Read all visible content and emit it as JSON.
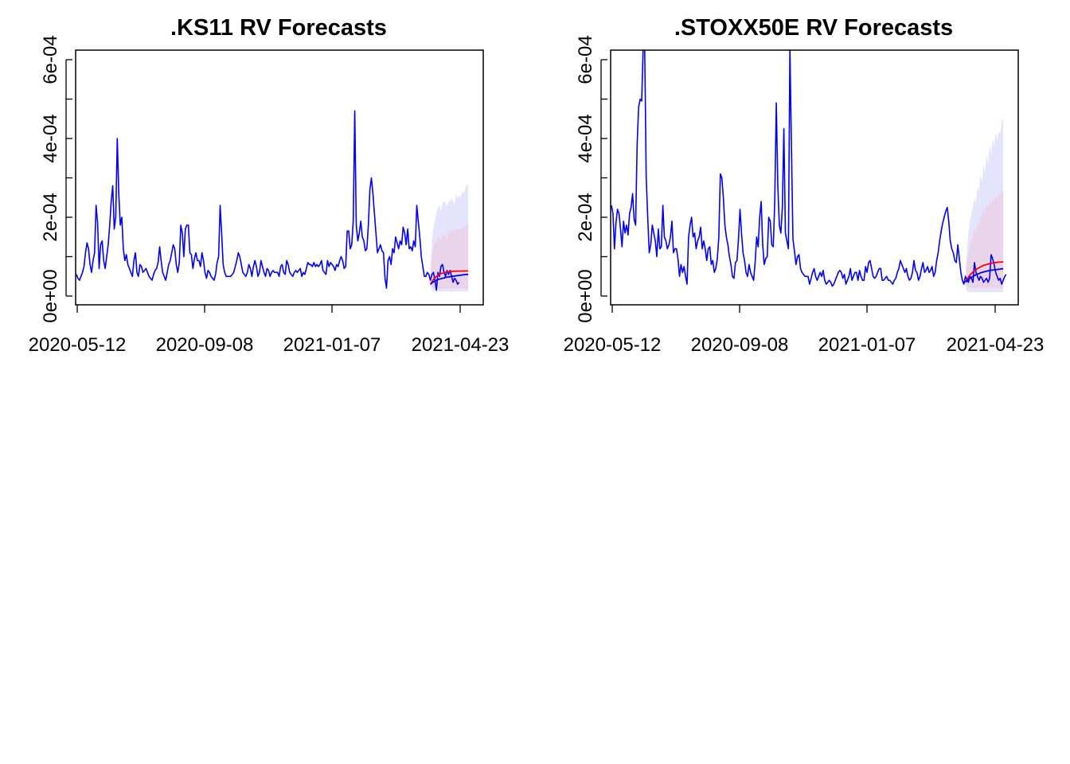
{
  "colors": {
    "history_line": "#0000ff",
    "forecast_red": "#ff0000",
    "forecast_blue": "#0000ff",
    "band_outer": "#e4e4fc",
    "band_inner": "#ead4ea",
    "axis": "#000000"
  },
  "chart_data": [
    {
      "type": "line",
      "title": ".KS11 RV Forecasts",
      "xlabel": "",
      "ylabel": "",
      "x_tick_labels": [
        "2020-05-12",
        "2020-09-08",
        "2021-01-07",
        "2021-04-23"
      ],
      "y_tick_labels": [
        "0e+00",
        "2e-04",
        "4e-04",
        "6e-04"
      ],
      "y_ticks": [
        0,
        0.0002,
        0.0004,
        0.0006
      ],
      "ylim": [
        0,
        0.00063
      ],
      "xlim": [
        0,
        260
      ],
      "grid": false,
      "legend": "none",
      "history": [
        5.5e-05,
        4.5e-05,
        4e-05,
        5e-05,
        6e-05,
        7.5e-05,
        0.00011,
        0.000135,
        0.00012,
        8e-05,
        6e-05,
        9e-05,
        0.00011,
        0.00023,
        0.000185,
        7e-05,
        0.00013,
        0.00014,
        9e-05,
        7e-05,
        0.0001,
        0.00013,
        0.00018,
        0.00024,
        0.00028,
        0.00017,
        0.0002,
        0.0004,
        0.00026,
        0.00018,
        0.0002,
        0.00012,
        9e-05,
        0.000105,
        8e-05,
        7e-05,
        6e-05,
        5e-05,
        9e-05,
        0.00011,
        6e-05,
        5e-05,
        8e-05,
        7.5e-05,
        6e-05,
        6.5e-05,
        7e-05,
        6e-05,
        5e-05,
        4.5e-05,
        4e-05,
        5.5e-05,
        6.5e-05,
        7e-05,
        8.5e-05,
        0.000125,
        9e-05,
        6e-05,
        5e-05,
        4e-05,
        6e-05,
        8e-05,
        9e-05,
        0.00011,
        0.00013,
        0.00012,
        8e-05,
        6e-05,
        8.5e-05,
        0.00018,
        0.00016,
        0.0001,
        0.00017,
        0.00018,
        0.00018,
        0.00011,
        0.000105,
        7e-05,
        9.5e-05,
        0.00011,
        9e-05,
        9e-05,
        7.5e-05,
        0.00011,
        9e-05,
        6e-05,
        4.5e-05,
        6.5e-05,
        6e-05,
        5e-05,
        4.5e-05,
        4e-05,
        5.5e-05,
        8.5e-05,
        0.0001,
        0.00023,
        0.00016,
        8e-05,
        6e-05,
        5e-05,
        5e-05,
        5e-05,
        5e-05,
        5.5e-05,
        6e-05,
        7.5e-05,
        9e-05,
        0.00011,
        0.0001,
        8e-05,
        6e-05,
        5.5e-05,
        5e-05,
        6e-05,
        8e-05,
        7e-05,
        5e-05,
        7.5e-05,
        9e-05,
        7.5e-05,
        5e-05,
        6e-05,
        9e-05,
        7.5e-05,
        6e-05,
        5e-05,
        7e-05,
        6.5e-05,
        5e-05,
        6e-05,
        6.5e-05,
        6e-05,
        6e-05,
        6e-05,
        5e-05,
        7.5e-05,
        8e-05,
        6e-05,
        5.5e-05,
        9e-05,
        8e-05,
        6e-05,
        5.5e-05,
        5e-05,
        6e-05,
        6.5e-05,
        6e-05,
        6.5e-05,
        7e-05,
        5e-05,
        6e-05,
        5.5e-05,
        7e-05,
        8.5e-05,
        8e-05,
        8e-05,
        7.5e-05,
        8.5e-05,
        7.5e-05,
        8e-05,
        7.5e-05,
        8e-05,
        9e-05,
        6.5e-05,
        6e-05,
        5.5e-05,
        9e-05,
        7.5e-05,
        8.5e-05,
        8e-05,
        7.5e-05,
        6.5e-05,
        8e-05,
        7.5e-05,
        9e-05,
        0.0001,
        9e-05,
        7e-05,
        7.5e-05,
        0.000165,
        0.000165,
        0.00012,
        0.00013,
        0.00019,
        0.00047,
        0.00018,
        0.00014,
        0.00016,
        0.00019,
        0.00015,
        0.00014,
        0.000115,
        0.00012,
        0.00018,
        0.00027,
        0.0003,
        0.00026,
        0.00021,
        0.00016,
        0.00011,
        0.00012,
        0.00013,
        0.000115,
        0.00011,
        4.5e-05,
        2e-05,
        9e-05,
        0.0001,
        8e-05,
        0.00012,
        0.00011,
        0.00015,
        0.000135,
        0.00012,
        0.00014,
        0.00013,
        0.000175,
        0.00016,
        0.00013,
        0.00017,
        0.00012,
        0.000125,
        0.000115,
        0.00014,
        0.000125,
        0.00023,
        0.00019,
        0.00015,
        0.0001,
        7.5e-05,
        5e-05,
        5e-05,
        6e-05,
        5.5e-05,
        4e-05,
        5.5e-05,
        6e-05,
        4e-05,
        1.5e-05,
        6e-05,
        5e-05,
        7.5e-05,
        8e-05,
        6e-05,
        5e-05,
        6.5e-05,
        5.5e-05,
        6.5e-05,
        5e-05,
        3.5e-05,
        4.5e-05,
        4e-05,
        3e-05,
        3.5e-05
      ],
      "forecast_start_index": 234,
      "forecast_red": [
        3e-05,
        3.6e-05,
        4.2e-05,
        4.6e-05,
        5e-05,
        5.3e-05,
        5.5e-05,
        5.7e-05,
        5.8e-05,
        5.9e-05,
        6e-05,
        6.1e-05,
        6.15e-05,
        6.2e-05,
        6.25e-05,
        6.3e-05,
        6.3e-05,
        6.32e-05,
        6.33e-05,
        6.34e-05,
        6.35e-05,
        6.35e-05,
        6.36e-05,
        6.36e-05,
        6.37e-05,
        6.37e-05
      ],
      "forecast_blue": [
        3e-05,
        3.3e-05,
        3.6e-05,
        3.8e-05,
        4e-05,
        4.2e-05,
        4.3e-05,
        4.4e-05,
        4.5e-05,
        4.6e-05,
        4.7e-05,
        4.8e-05,
        4.85e-05,
        4.9e-05,
        5e-05,
        5.05e-05,
        5.1e-05,
        5.15e-05,
        5.2e-05,
        5.25e-05,
        5.3e-05,
        5.35e-05,
        5.4e-05,
        5.45e-05,
        5.5e-05,
        5.52e-05
      ],
      "band_outer_upper": [
        6e-05,
        0.00014,
        0.00017,
        0.00019,
        0.00021,
        0.000225,
        0.00023,
        0.000215,
        0.000235,
        0.00024,
        0.000238,
        0.000225,
        0.000245,
        0.000238,
        0.00025,
        0.00024,
        0.000232,
        0.00026,
        0.000248,
        0.000255,
        0.00025,
        0.000265,
        0.000262,
        0.000272,
        0.000285,
        0.00028
      ],
      "band_outer_lower": [
        2.6e-05,
        1.4e-05,
        1.3e-05,
        1.2e-05,
        1.2e-05,
        1.2e-05,
        1.2e-05,
        1.2e-05,
        1.2e-05,
        1.2e-05,
        1.2e-05,
        1.2e-05,
        1.2e-05,
        1.2e-05,
        1.2e-05,
        1.2e-05,
        1.2e-05,
        1.2e-05,
        1.2e-05,
        1.2e-05,
        1.2e-05,
        1.2e-05,
        1.2e-05,
        1.2e-05,
        1.2e-05,
        1.2e-05
      ],
      "band_inner_upper": [
        4e-05,
        0.0001,
        0.00012,
        0.000135,
        0.00014,
        0.00015,
        0.000148,
        0.00014,
        0.000155,
        0.000158,
        0.000152,
        0.000145,
        0.000165,
        0.00016,
        0.000168,
        0.000165,
        0.00016,
        0.000175,
        0.000168,
        0.00017,
        0.000168,
        0.000175,
        0.00017,
        0.000178,
        0.000182,
        0.00018
      ],
      "band_inner_lower": [
        3e-05,
        2.2e-05,
        2e-05,
        1.9e-05,
        1.9e-05,
        1.9e-05,
        1.9e-05,
        1.9e-05,
        1.9e-05,
        1.9e-05,
        1.9e-05,
        1.9e-05,
        1.9e-05,
        1.9e-05,
        1.9e-05,
        1.9e-05,
        1.9e-05,
        1.9e-05,
        1.9e-05,
        1.9e-05,
        1.9e-05,
        1.9e-05,
        1.9e-05,
        1.9e-05,
        1.9e-05,
        1.9e-05
      ]
    },
    {
      "type": "line",
      "title": ".STOXX50E RV Forecasts",
      "xlabel": "",
      "ylabel": "",
      "x_tick_labels": [
        "2020-05-12",
        "2020-09-08",
        "2021-01-07",
        "2021-04-23"
      ],
      "y_tick_labels": [
        "0e+00",
        "2e-04",
        "4e-04",
        "6e-04"
      ],
      "y_ticks": [
        0,
        0.0002,
        0.0004,
        0.0006
      ],
      "ylim": [
        0,
        0.00063
      ],
      "xlim": [
        0,
        260
      ],
      "grid": false,
      "legend": "none",
      "history": [
        0.00023,
        0.00021,
        0.00012,
        0.000185,
        0.00022,
        0.00021,
        0.00017,
        0.000125,
        0.00019,
        0.00016,
        0.00018,
        0.000155,
        0.00021,
        0.000225,
        0.00026,
        0.000195,
        0.00018,
        0.000385,
        0.00048,
        0.0005,
        0.000495,
        0.00063,
        0.00063,
        0.0003,
        0.0002,
        0.00011,
        0.00013,
        0.00018,
        0.00016,
        0.00014,
        0.0001,
        0.00017,
        0.00012,
        0.000125,
        0.00023,
        0.00015,
        0.00014,
        0.00012,
        0.00013,
        0.00015,
        0.00019,
        0.00011,
        0.00012,
        0.00012,
        9.5e-05,
        5e-05,
        8e-05,
        6e-05,
        7.5e-05,
        5e-05,
        3e-05,
        0.00015,
        0.00018,
        0.0002,
        0.00015,
        0.00016,
        0.00012,
        0.00014,
        0.00015,
        0.000175,
        0.00012,
        0.00014,
        0.00012,
        9e-05,
        0.00012,
        0.000125,
        8e-05,
        9e-05,
        6e-05,
        7e-05,
        9.5e-05,
        0.00015,
        0.00031,
        0.0003,
        0.00025,
        0.00018,
        0.00015,
        0.00013,
        0.0001,
        8e-05,
        5e-05,
        4.5e-05,
        8.5e-05,
        9e-05,
        0.000145,
        0.00022,
        0.00016,
        0.00011,
        9e-05,
        6e-05,
        5e-05,
        8e-05,
        6e-05,
        5e-05,
        4e-05,
        8.5e-05,
        0.00015,
        0.000125,
        0.0002,
        0.00024,
        0.00013,
        8e-05,
        9.5e-05,
        0.0001,
        0.0002,
        0.00019,
        0.00013,
        0.000125,
        0.000245,
        0.00049,
        0.00028,
        0.00018,
        0.00016,
        0.000225,
        0.000425,
        0.00016,
        0.00014,
        0.00012,
        0.00063,
        0.00038,
        0.000145,
        0.000115,
        8e-05,
        0.0001,
        0.000105,
        7e-05,
        6e-05,
        5.5e-05,
        5e-05,
        5e-05,
        5e-05,
        3e-05,
        4.5e-05,
        6e-05,
        7e-05,
        5e-05,
        4e-05,
        5e-05,
        6e-05,
        5e-05,
        6.5e-05,
        4e-05,
        3e-05,
        3.5e-05,
        4e-05,
        3.5e-05,
        2.5e-05,
        3e-05,
        4e-05,
        5e-05,
        6e-05,
        6.5e-05,
        6e-05,
        4.5e-05,
        5.5e-05,
        3e-05,
        4e-05,
        5e-05,
        7e-05,
        4e-05,
        5e-05,
        6e-05,
        6e-05,
        4e-05,
        6.5e-05,
        5e-05,
        4e-05,
        4e-05,
        7.5e-05,
        6e-05,
        8.5e-05,
        9e-05,
        7e-05,
        5e-05,
        4.5e-05,
        5e-05,
        6e-05,
        7e-05,
        7e-05,
        4e-05,
        4e-05,
        4.5e-05,
        5e-05,
        4e-05,
        4e-05,
        3.5e-05,
        3e-05,
        4e-05,
        4.5e-05,
        6e-05,
        7e-05,
        9e-05,
        8e-05,
        7e-05,
        6e-05,
        7e-05,
        5e-05,
        4e-05,
        4.5e-05,
        6e-05,
        9e-05,
        6.5e-05,
        6e-05,
        4e-05,
        5e-05,
        7e-05,
        8.5e-05,
        6e-05,
        6.5e-05,
        7.5e-05,
        6e-05,
        6.5e-05,
        7.5e-05,
        5e-05,
        6e-05,
        9e-05,
        0.00011,
        0.00014,
        0.000165,
        0.000185,
        0.0002,
        0.000215,
        0.000225,
        0.00019,
        0.00014,
        0.00012,
        0.00011,
        9e-05,
        8.5e-05,
        0.00013,
        9.5e-05,
        6e-05,
        4e-05,
        3e-05,
        5e-05,
        4e-05,
        3.5e-05,
        5e-05,
        4.5e-05,
        3.5e-05,
        8.5e-05,
        6e-05,
        5e-05,
        4e-05,
        5e-05,
        4.5e-05,
        3.5e-05,
        4e-05,
        4.5e-05,
        3.5e-05,
        4.5e-05,
        0.000105,
        9.5e-05,
        8e-05,
        6e-05,
        5e-05,
        4e-05,
        4.5e-05,
        3e-05,
        4e-05,
        5e-05,
        5.5e-05
      ],
      "forecast_start_index": 234,
      "forecast_red": [
        3.5e-05,
        4.2e-05,
        4.8e-05,
        5.3e-05,
        5.7e-05,
        6.1e-05,
        6.4e-05,
        6.7e-05,
        7e-05,
        7.2e-05,
        7.4e-05,
        7.6e-05,
        7.8e-05,
        7.9e-05,
        8e-05,
        8.1e-05,
        8.2e-05,
        8.3e-05,
        8.4e-05,
        8.45e-05,
        8.5e-05,
        8.55e-05,
        8.6e-05,
        8.62e-05,
        8.65e-05,
        8.66e-05
      ],
      "forecast_blue": [
        3.5e-05,
        3.9e-05,
        4.2e-05,
        4.5e-05,
        4.7e-05,
        5e-05,
        5.2e-05,
        5.4e-05,
        5.6e-05,
        5.7e-05,
        5.9e-05,
        6e-05,
        6.1e-05,
        6.2e-05,
        6.3e-05,
        6.4e-05,
        6.48e-05,
        6.55e-05,
        6.6e-05,
        6.65e-05,
        6.7e-05,
        6.75e-05,
        6.8e-05,
        6.85e-05,
        6.9e-05,
        6.92e-05
      ],
      "band_outer_upper": [
        4e-05,
        0.00012,
        0.00016,
        0.00019,
        0.00021,
        0.000225,
        0.00025,
        0.000235,
        0.00028,
        0.000265,
        0.00031,
        0.00029,
        0.000335,
        0.00031,
        0.00036,
        0.000335,
        0.000385,
        0.00036,
        0.0004,
        0.00038,
        0.000415,
        0.000395,
        0.00042,
        0.00041,
        0.000445,
        0.00045
      ],
      "band_outer_lower": [
        3e-05,
        1.2e-05,
        1.1e-05,
        1e-05,
        1e-05,
        1e-05,
        1e-05,
        1e-05,
        1e-05,
        1e-05,
        1e-05,
        1e-05,
        1e-05,
        1e-05,
        1e-05,
        1e-05,
        1e-05,
        1e-05,
        1e-05,
        1e-05,
        1e-05,
        1e-05,
        1e-05,
        1e-05,
        1e-05,
        1e-05
      ],
      "band_inner_upper": [
        4e-05,
        8.5e-05,
        0.00011,
        0.00013,
        0.00014,
        0.000155,
        0.00017,
        0.00016,
        0.00019,
        0.00018,
        0.00021,
        0.000195,
        0.000225,
        0.00021,
        0.000235,
        0.00022,
        0.000245,
        0.00023,
        0.00025,
        0.00024,
        0.000255,
        0.000245,
        0.00026,
        0.000255,
        0.000265,
        0.000265
      ],
      "band_inner_lower": [
        3.4e-05,
        2.6e-05,
        2.4e-05,
        2.2e-05,
        2.1e-05,
        2e-05,
        2e-05,
        2e-05,
        2e-05,
        2e-05,
        2e-05,
        2e-05,
        2e-05,
        2e-05,
        2e-05,
        2e-05,
        2e-05,
        2e-05,
        2e-05,
        2e-05,
        2e-05,
        2e-05,
        2e-05,
        2e-05,
        2e-05,
        2e-05
      ]
    }
  ]
}
